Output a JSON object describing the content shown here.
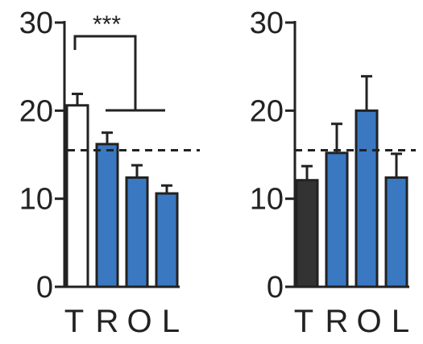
{
  "colors": {
    "axis": "#222222",
    "blue": "#3a78c2",
    "black": "#333333",
    "white": "#ffffff"
  },
  "chart_data": [
    {
      "type": "bar",
      "ylim": [
        0,
        30
      ],
      "yticks": [
        0,
        10,
        20,
        30
      ],
      "categories": [
        "T",
        "R",
        "O",
        "L"
      ],
      "values": [
        20.6,
        16.2,
        12.4,
        10.6
      ],
      "errors": [
        1.3,
        1.3,
        1.4,
        0.9
      ],
      "bar_colors": [
        "#ffffff",
        "#3a78c2",
        "#3a78c2",
        "#3a78c2"
      ],
      "reference_line": 15.5,
      "significance": "***"
    },
    {
      "type": "bar",
      "ylim": [
        0,
        30
      ],
      "yticks": [
        0,
        10,
        20,
        30
      ],
      "categories": [
        "T",
        "R",
        "O",
        "L"
      ],
      "values": [
        12.1,
        15.2,
        20.0,
        12.4
      ],
      "errors": [
        1.6,
        3.3,
        3.9,
        2.7
      ],
      "bar_colors": [
        "#333333",
        "#3a78c2",
        "#3a78c2",
        "#3a78c2"
      ],
      "reference_line": 15.5
    }
  ]
}
